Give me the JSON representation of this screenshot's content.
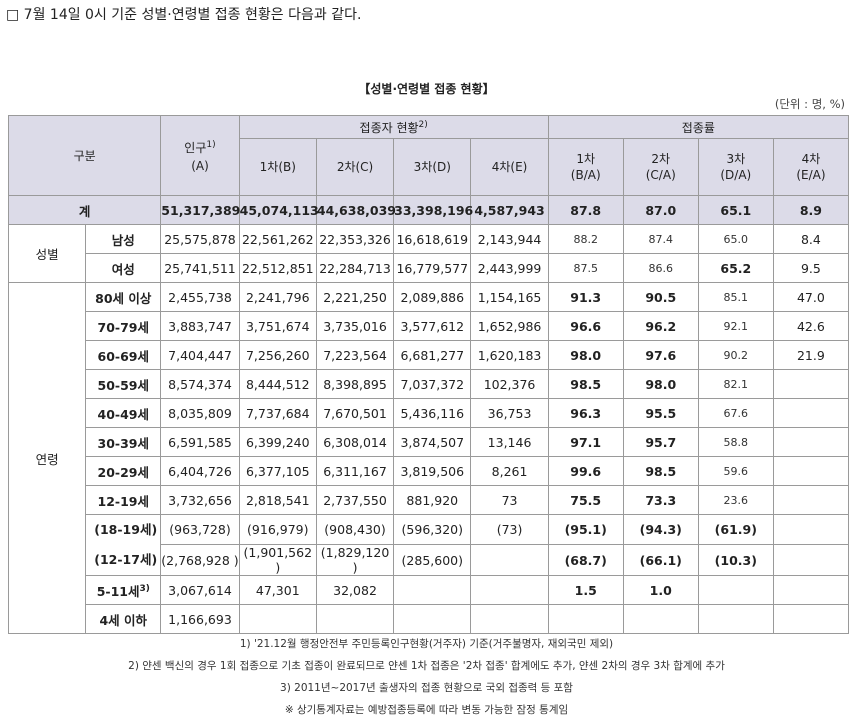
{
  "intro": "□ 7월 14일 0시 기준 성별·연령별 접종 현황은 다음과 같다.",
  "title": "【성별·연령별 접종 현황】",
  "unit": "(단위 : 명, %)",
  "header": {
    "category": "구분",
    "population": "인구",
    "population_sup": "1)",
    "population_sub": "(A)",
    "vaccinated_group": "접종자 현황",
    "vaccinated_sup": "2)",
    "rate_group": "접종률",
    "doses": [
      "1차(B)",
      "2차(C)",
      "3차(D)",
      "4차(E)"
    ],
    "rates_top": [
      "1차",
      "2차",
      "3차",
      "4차"
    ],
    "rates_bottom": [
      "(B/A)",
      "(C/A)",
      "(D/A)",
      "(E/A)"
    ]
  },
  "total": {
    "label": "계",
    "values": [
      "51,317,389",
      "45,074,113",
      "44,638,039",
      "33,398,196",
      "4,587,943",
      "87.8",
      "87.0",
      "65.1",
      "8.9"
    ]
  },
  "gender_group": "성별",
  "gender_rows": [
    {
      "label": "남성",
      "values": [
        "25,575,878",
        "22,561,262",
        "22,353,326",
        "16,618,619",
        "2,143,944",
        "88.2",
        "87.4",
        "65.0",
        "8.4"
      ]
    },
    {
      "label": "여성",
      "values": [
        "25,741,511",
        "22,512,851",
        "22,284,713",
        "16,779,577",
        "2,443,999",
        "87.5",
        "86.6",
        "65.2",
        "9.5"
      ]
    }
  ],
  "age_group": "연령",
  "age_rows": [
    {
      "label": "80세 이상",
      "values": [
        "2,455,738",
        "2,241,796",
        "2,221,250",
        "2,089,886",
        "1,154,165",
        "91.3",
        "90.5",
        "85.1",
        "47.0"
      ]
    },
    {
      "label": "70-79세",
      "values": [
        "3,883,747",
        "3,751,674",
        "3,735,016",
        "3,577,612",
        "1,652,986",
        "96.6",
        "96.2",
        "92.1",
        "42.6"
      ]
    },
    {
      "label": "60-69세",
      "values": [
        "7,404,447",
        "7,256,260",
        "7,223,564",
        "6,681,277",
        "1,620,183",
        "98.0",
        "97.6",
        "90.2",
        "21.9"
      ]
    },
    {
      "label": "50-59세",
      "values": [
        "8,574,374",
        "8,444,512",
        "8,398,895",
        "7,037,372",
        "102,376",
        "98.5",
        "98.0",
        "82.1",
        ""
      ]
    },
    {
      "label": "40-49세",
      "values": [
        "8,035,809",
        "7,737,684",
        "7,670,501",
        "5,436,116",
        "36,753",
        "96.3",
        "95.5",
        "67.6",
        ""
      ]
    },
    {
      "label": "30-39세",
      "values": [
        "6,591,585",
        "6,399,240",
        "6,308,014",
        "3,874,507",
        "13,146",
        "97.1",
        "95.7",
        "58.8",
        ""
      ]
    },
    {
      "label": "20-29세",
      "values": [
        "6,404,726",
        "6,377,105",
        "6,311,167",
        "3,819,506",
        "8,261",
        "99.6",
        "98.5",
        "59.6",
        ""
      ]
    },
    {
      "label": "12-19세",
      "values": [
        "3,732,656",
        "2,818,541",
        "2,737,550",
        "881,920",
        "73",
        "75.5",
        "73.3",
        "23.6",
        ""
      ]
    }
  ],
  "sub_rows": [
    {
      "label": "(18-19세)",
      "values": [
        "(963,728)",
        "(916,979)",
        "(908,430)",
        "(596,320)",
        "(73)",
        "(95.1)",
        "(94.3)",
        "(61.9)",
        ""
      ]
    },
    {
      "label": "(12-17세)",
      "values": [
        "(2,768,928\n)",
        "(1,901,562\n)",
        "(1,829,120\n)",
        "(285,600)",
        "",
        "(68.7)",
        "(66.1)",
        "(10.3)",
        ""
      ]
    }
  ],
  "row_5_11": {
    "label": "5-11세",
    "sup": "3)",
    "values": [
      "3,067,614",
      "47,301",
      "32,082",
      "",
      "",
      "1.5",
      "1.0",
      "",
      ""
    ]
  },
  "row_under4": {
    "label": "4세 이하",
    "values": [
      "1,166,693",
      "",
      "",
      "",
      "",
      "",
      "",
      "",
      ""
    ]
  },
  "notes": [
    "1) '21.12월 행정안전부 주민등록인구현황(거주자) 기준(거주불명자, 재외국민 제외)",
    "2) 얀센 백신의 경우 1회 접종으로 기초 접종이 완료되므로 얀센 1차 접종은 '2차 접종' 합계에도 추가, 얀센 2차의 경우 3차 합계에 추가",
    "3) 2011년~2017년 출생자의 접종 현황으로 국외 접종력 등 포함",
    "※ 상기통계자료는 예방접종등록에 따라 변동 가능한 잠정 통계임"
  ]
}
